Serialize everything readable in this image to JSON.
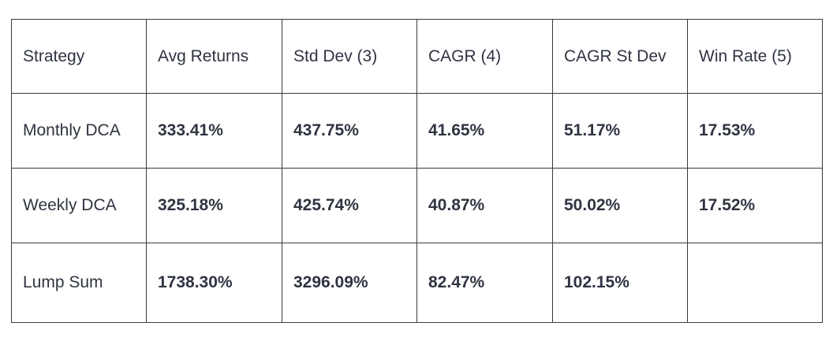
{
  "table": {
    "headers": [
      "Strategy",
      "Avg Returns",
      "Std Dev (3)",
      "CAGR (4)",
      "CAGR St Dev",
      "Win Rate (5)"
    ],
    "rows": [
      [
        "Monthly DCA",
        "333.41%",
        "437.75%",
        "41.65%",
        "51.17%",
        "17.53%"
      ],
      [
        "Weekly DCA",
        "325.18%",
        "425.74%",
        "40.87%",
        "50.02%",
        "17.52%"
      ],
      [
        "Lump Sum",
        "1738.30%",
        "3296.09%",
        "82.47%",
        "102.15%",
        ""
      ]
    ]
  }
}
